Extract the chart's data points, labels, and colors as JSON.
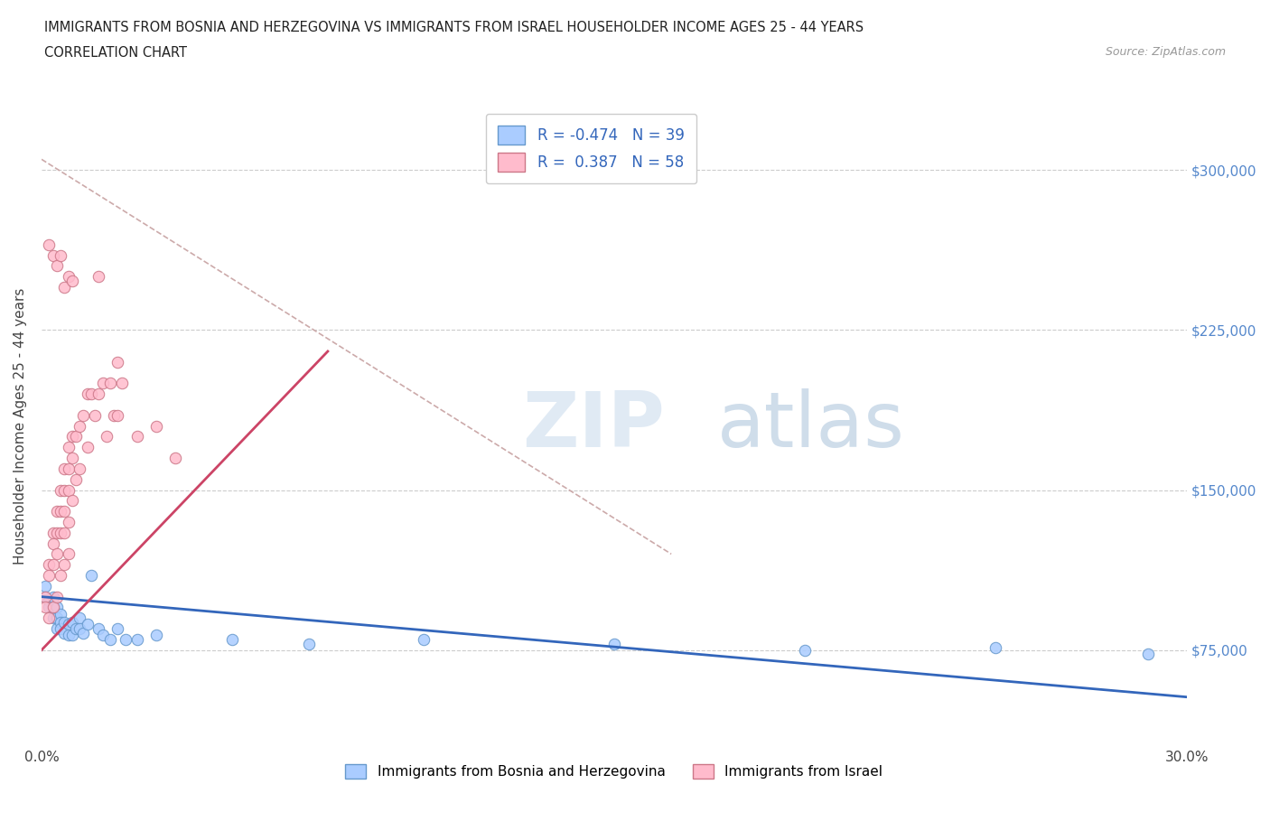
{
  "title_line1": "IMMIGRANTS FROM BOSNIA AND HERZEGOVINA VS IMMIGRANTS FROM ISRAEL HOUSEHOLDER INCOME AGES 25 - 44 YEARS",
  "title_line2": "CORRELATION CHART",
  "source": "Source: ZipAtlas.com",
  "ylabel": "Householder Income Ages 25 - 44 years",
  "xmin": 0.0,
  "xmax": 0.3,
  "ymin": 30000,
  "ymax": 330000,
  "yticks": [
    75000,
    150000,
    225000,
    300000
  ],
  "ytick_labels": [
    "$75,000",
    "$150,000",
    "$225,000",
    "$300,000"
  ],
  "xticks": [
    0.0,
    0.05,
    0.1,
    0.15,
    0.2,
    0.25,
    0.3
  ],
  "xtick_labels": [
    "0.0%",
    "",
    "",
    "",
    "",
    "",
    "30.0%"
  ],
  "watermark_zip": "ZIP",
  "watermark_atlas": "atlas",
  "series1_name": "Immigrants from Bosnia and Herzegovina",
  "series1_color": "#aaccff",
  "series1_edge": "#6699cc",
  "series1_R": -0.474,
  "series1_N": 39,
  "series2_name": "Immigrants from Israel",
  "series2_color": "#ffbbcc",
  "series2_edge": "#cc7788",
  "series2_R": 0.387,
  "series2_N": 58,
  "line1_color": "#3366bb",
  "line2_color": "#cc4466",
  "dash_line_color": "#ccaaaa",
  "axis_label_color": "#5588cc",
  "bosnia_x": [
    0.001,
    0.001,
    0.002,
    0.002,
    0.003,
    0.003,
    0.003,
    0.004,
    0.004,
    0.004,
    0.005,
    0.005,
    0.005,
    0.006,
    0.006,
    0.007,
    0.007,
    0.008,
    0.008,
    0.009,
    0.01,
    0.01,
    0.011,
    0.012,
    0.013,
    0.015,
    0.016,
    0.018,
    0.02,
    0.022,
    0.025,
    0.03,
    0.05,
    0.07,
    0.1,
    0.15,
    0.2,
    0.25,
    0.29
  ],
  "bosnia_y": [
    105000,
    100000,
    98000,
    95000,
    100000,
    95000,
    90000,
    95000,
    90000,
    85000,
    92000,
    88000,
    85000,
    88000,
    83000,
    87000,
    82000,
    88000,
    82000,
    85000,
    90000,
    85000,
    83000,
    87000,
    110000,
    85000,
    82000,
    80000,
    85000,
    80000,
    80000,
    82000,
    80000,
    78000,
    80000,
    78000,
    75000,
    76000,
    73000
  ],
  "israel_x": [
    0.001,
    0.001,
    0.002,
    0.002,
    0.002,
    0.003,
    0.003,
    0.003,
    0.003,
    0.004,
    0.004,
    0.004,
    0.004,
    0.005,
    0.005,
    0.005,
    0.005,
    0.006,
    0.006,
    0.006,
    0.006,
    0.006,
    0.007,
    0.007,
    0.007,
    0.007,
    0.007,
    0.008,
    0.008,
    0.008,
    0.009,
    0.009,
    0.01,
    0.01,
    0.011,
    0.012,
    0.012,
    0.013,
    0.014,
    0.015,
    0.016,
    0.017,
    0.018,
    0.019,
    0.02,
    0.02,
    0.021,
    0.025,
    0.03,
    0.035,
    0.002,
    0.003,
    0.004,
    0.005,
    0.006,
    0.007,
    0.008,
    0.015
  ],
  "israel_y": [
    100000,
    95000,
    115000,
    110000,
    90000,
    130000,
    125000,
    115000,
    95000,
    140000,
    130000,
    120000,
    100000,
    150000,
    140000,
    130000,
    110000,
    160000,
    150000,
    140000,
    130000,
    115000,
    170000,
    160000,
    150000,
    135000,
    120000,
    175000,
    165000,
    145000,
    175000,
    155000,
    180000,
    160000,
    185000,
    195000,
    170000,
    195000,
    185000,
    195000,
    200000,
    175000,
    200000,
    185000,
    210000,
    185000,
    200000,
    175000,
    180000,
    165000,
    265000,
    260000,
    255000,
    260000,
    245000,
    250000,
    248000,
    250000
  ],
  "bosnia_trend_x": [
    0.0,
    0.3
  ],
  "bosnia_trend_y": [
    100000,
    53000
  ],
  "israel_trend_x": [
    0.0,
    0.075
  ],
  "israel_trend_y": [
    75000,
    215000
  ],
  "dash_trend_x": [
    0.0,
    0.165
  ],
  "dash_trend_y": [
    305000,
    120000
  ]
}
